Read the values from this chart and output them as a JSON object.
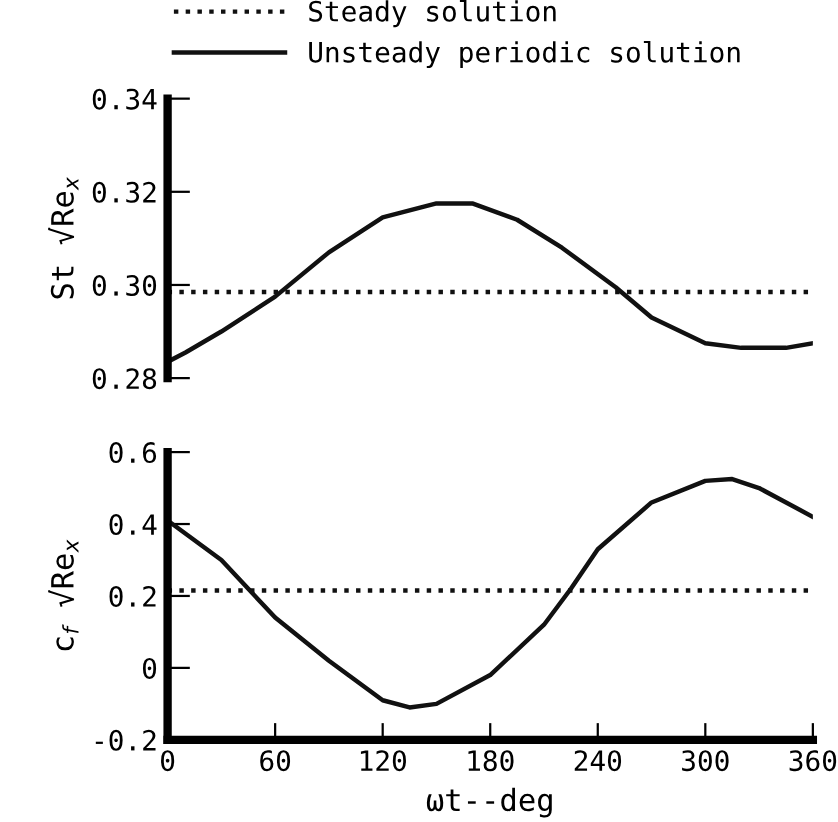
{
  "chart_data": [
    {
      "type": "line",
      "ylabel": "St √Re$_{x}$",
      "xlim": [
        0,
        360
      ],
      "ylim": [
        0.28,
        0.34
      ],
      "yticks": [
        {
          "value": 0.28,
          "label": "0.28"
        },
        {
          "value": 0.3,
          "label": "0.30"
        },
        {
          "value": 0.32,
          "label": "0.32"
        },
        {
          "value": 0.34,
          "label": "0.34"
        }
      ],
      "tick_labels": "y",
      "legend": "top",
      "grid": false,
      "marker": "none",
      "series": [
        {
          "name": "Steady solution",
          "color": "#111111",
          "line_style": "dotted",
          "x": [
            0,
            90,
            180,
            270,
            360
          ],
          "values": [
            0.2985,
            0.2985,
            0.2985,
            0.2985,
            0.2985
          ]
        },
        {
          "name": "Unsteady periodic solution",
          "color": "#111111",
          "line_style": "solid",
          "x": [
            0,
            10,
            30,
            60,
            90,
            120,
            150,
            170,
            195,
            220,
            250,
            270,
            300,
            320,
            345,
            360
          ],
          "values": [
            0.2835,
            0.2855,
            0.29,
            0.2975,
            0.307,
            0.3145,
            0.3175,
            0.3175,
            0.314,
            0.308,
            0.2995,
            0.293,
            0.2875,
            0.2865,
            0.2865,
            0.2875
          ]
        }
      ]
    },
    {
      "type": "line",
      "ylabel": "c$_{f}$ √Re$_{x}$",
      "xlabel": "ωt--deg",
      "xlim": [
        0,
        360
      ],
      "xticks": [
        0,
        60,
        120,
        180,
        240,
        300,
        360
      ],
      "ylim": [
        -0.2,
        0.6
      ],
      "yticks": [
        {
          "value": -0.2,
          "label": "-0.2"
        },
        0,
        {
          "value": 0.2,
          "label": "0.2"
        },
        {
          "value": 0.4,
          "label": "0.4"
        },
        {
          "value": 0.6,
          "label": "0.6"
        }
      ],
      "grid": false,
      "marker": "none",
      "series": [
        {
          "color": "#111111",
          "line_style": "dotted",
          "x": [
            0,
            90,
            180,
            270,
            360
          ],
          "values": [
            0.215,
            0.215,
            0.215,
            0.215,
            0.215
          ]
        },
        {
          "color": "#111111",
          "line_style": "solid",
          "x": [
            0,
            30,
            45,
            60,
            90,
            120,
            135,
            150,
            180,
            210,
            225,
            240,
            270,
            300,
            315,
            330,
            360
          ],
          "values": [
            0.41,
            0.3,
            0.22,
            0.14,
            0.02,
            -0.09,
            -0.11,
            -0.1,
            -0.02,
            0.12,
            0.22,
            0.33,
            0.46,
            0.52,
            0.525,
            0.5,
            0.42
          ]
        }
      ]
    }
  ]
}
